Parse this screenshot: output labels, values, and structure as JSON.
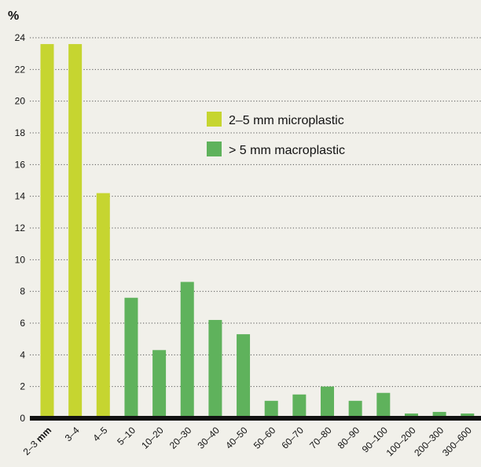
{
  "colors": {
    "micro": "#c6d530",
    "macro": "#5fb25c",
    "axis": "#111111",
    "background": "#f1f0ea"
  },
  "chart_data": {
    "type": "bar",
    "title": "",
    "ylabel": "%",
    "xlabel": "",
    "ylim": [
      0,
      24
    ],
    "yticks": [
      0,
      2,
      4,
      6,
      8,
      10,
      12,
      14,
      16,
      18,
      20,
      22,
      24
    ],
    "grid": true,
    "legend_position": "upper-middle",
    "categories": [
      "2–3",
      "3–4",
      "4–5",
      "5–10",
      "10–20",
      "20–30",
      "30–40",
      "40–50",
      "50–60",
      "60–70",
      "70–80",
      "80–90",
      "90–100",
      "100–200",
      "200–300",
      "300–600"
    ],
    "unit_label": "mm",
    "series": [
      {
        "name": "2–5 mm microplastic",
        "color": "#c6d530",
        "values": [
          23.6,
          23.6,
          14.2,
          null,
          null,
          null,
          null,
          null,
          null,
          null,
          null,
          null,
          null,
          null,
          null,
          null
        ]
      },
      {
        "name": "> 5 mm macroplastic",
        "color": "#5fb25c",
        "values": [
          null,
          null,
          null,
          7.6,
          4.3,
          8.6,
          6.2,
          5.3,
          1.1,
          1.5,
          2.0,
          1.1,
          1.6,
          0.3,
          0.4,
          0.3
        ]
      }
    ]
  }
}
